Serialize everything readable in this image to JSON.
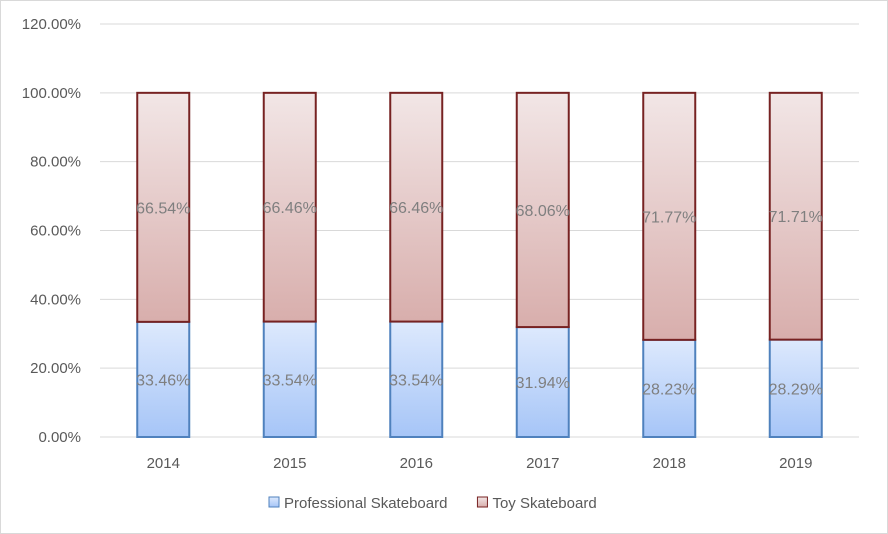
{
  "chart_data": {
    "type": "bar",
    "stacked": true,
    "title": "",
    "xlabel": "",
    "ylabel": "",
    "categories": [
      "2014",
      "2015",
      "2016",
      "2017",
      "2018",
      "2019"
    ],
    "series": [
      {
        "name": "Professional Skateboard",
        "values": [
          33.46,
          33.54,
          33.54,
          31.94,
          28.23,
          28.29
        ],
        "labels": [
          "33.46%",
          "33.54%",
          "33.54%",
          "31.94%",
          "28.23%",
          "28.29%"
        ],
        "color_top": "#dde9fd",
        "color_bottom": "#a6c5f7",
        "border": "#4f81bd"
      },
      {
        "name": "Toy Skateboard",
        "values": [
          66.54,
          66.46,
          66.46,
          68.06,
          71.77,
          71.71
        ],
        "labels": [
          "66.54%",
          "66.46%",
          "66.46%",
          "68.06%",
          "71.77%",
          "71.71%"
        ],
        "color_top": "#f2e6e6",
        "color_bottom": "#d8aeac",
        "border": "#772222"
      }
    ],
    "ylim": [
      0,
      120
    ],
    "yticks": [
      "0.00%",
      "20.00%",
      "40.00%",
      "60.00%",
      "80.00%",
      "100.00%",
      "120.00%"
    ],
    "grid": true,
    "legend_position": "bottom"
  }
}
